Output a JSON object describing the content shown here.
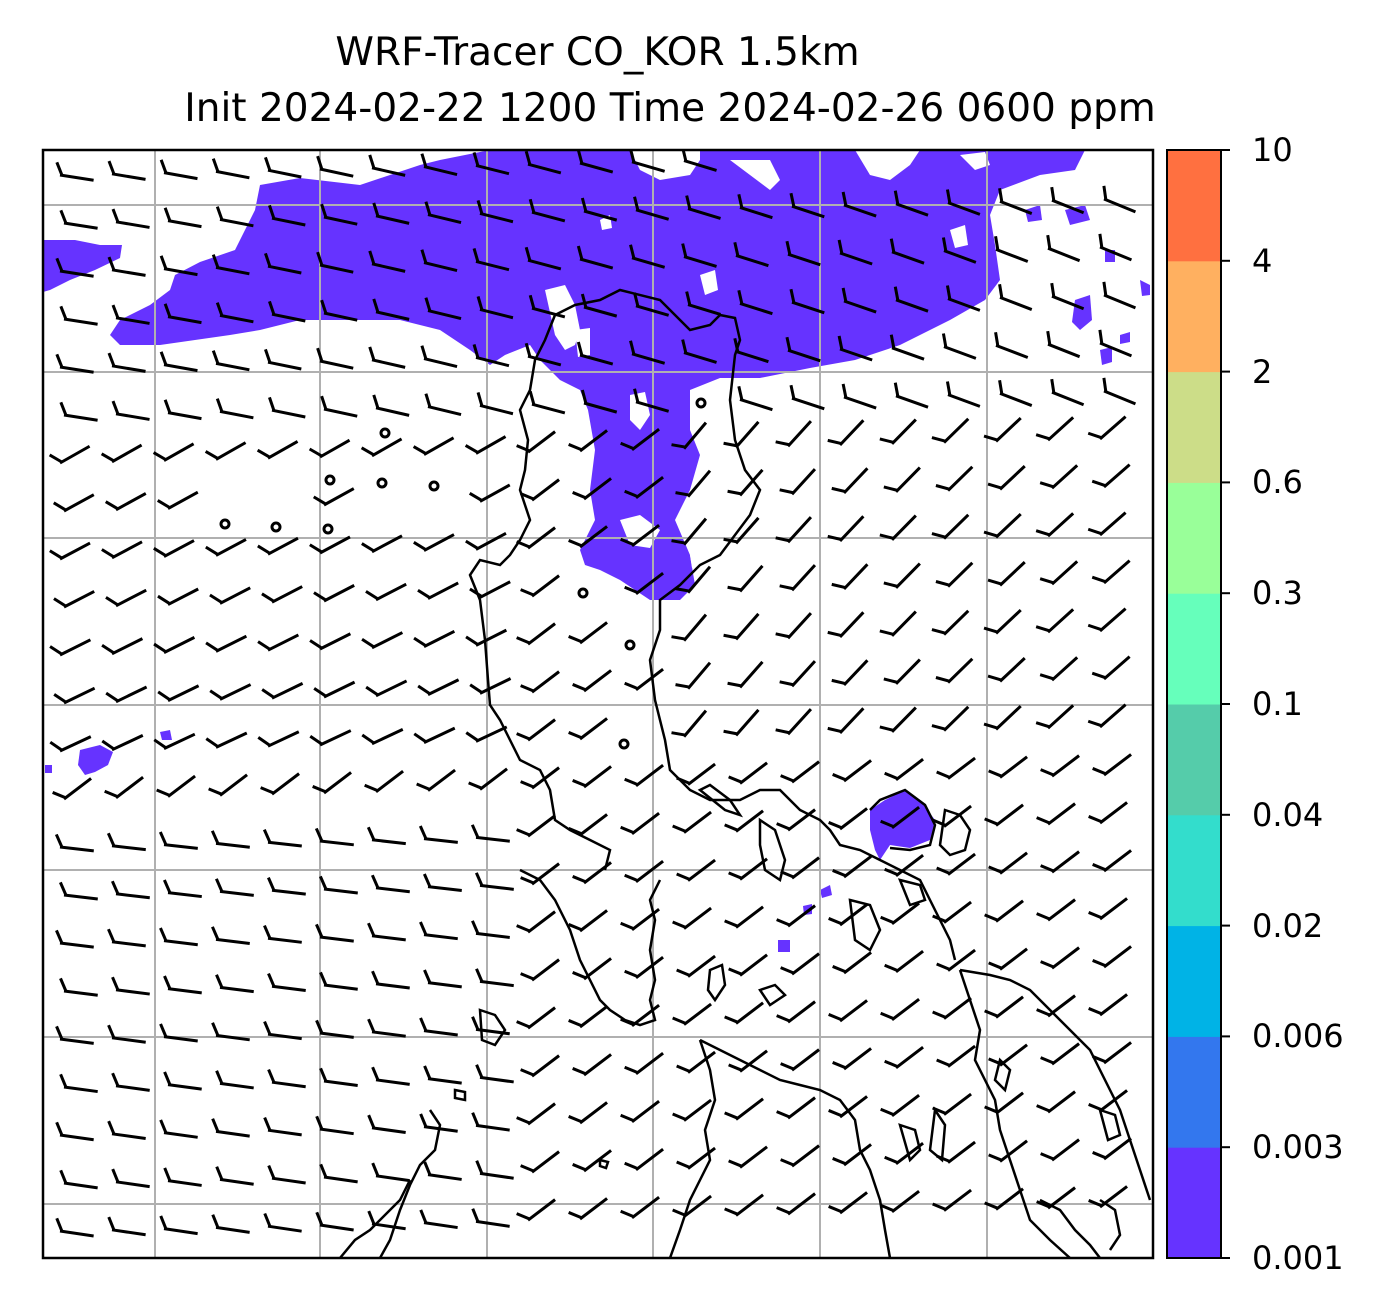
{
  "title": {
    "line1": "WRF-Tracer CO_KOR 1.5km",
    "line2": "Init 2024-02-22 1200 Time 2024-02-26 0600 ppm"
  },
  "colorbar": {
    "levels": [
      "0.001",
      "0.003",
      "0.006",
      "0.02",
      "0.04",
      "0.1",
      "0.3",
      "0.6",
      "2",
      "4",
      "10"
    ],
    "colors": [
      "#6633ff",
      "#3377ee",
      "#00b3e6",
      "#33ddcc",
      "#55ccaa",
      "#66ffbb",
      "#99ff99",
      "#ccdd88",
      "#ffb060",
      "#ff7040",
      "#ff2a1a"
    ]
  },
  "colors": {
    "tracer_fill": "#6633ff",
    "coastline": "#000000",
    "grid": "#b0b0b0"
  }
}
